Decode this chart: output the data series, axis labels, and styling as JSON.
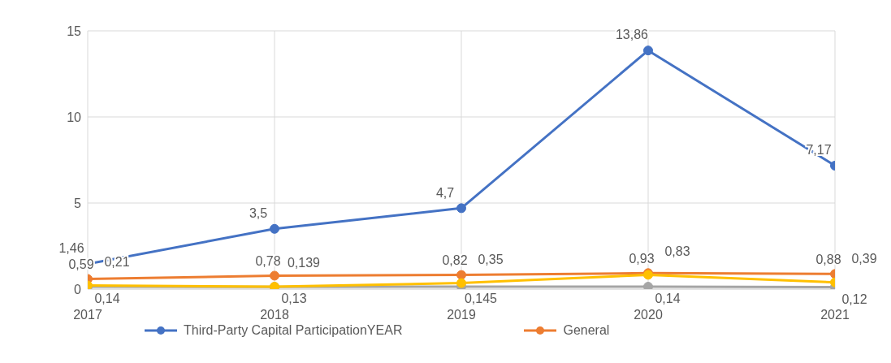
{
  "chart_data": {
    "type": "line",
    "categories": [
      "2017",
      "2018",
      "2019",
      "2020",
      "2021"
    ],
    "ylim": [
      0,
      15
    ],
    "yticks": [
      0,
      5,
      10,
      15
    ],
    "grid": true,
    "legend": "bottom",
    "marker": "circle",
    "line_style": "solid",
    "series": [
      {
        "name": "Third-Party Capital ParticipationYEAR",
        "color": "#4472c4",
        "values": [
          1.46,
          3.5,
          4.7,
          13.86,
          7.17
        ],
        "value_labels": [
          "1,46",
          "3,5",
          "4,7",
          "13,86",
          "7,17"
        ]
      },
      {
        "name": "General",
        "color": "#ed7d31",
        "values": [
          0.59,
          0.78,
          0.82,
          0.93,
          0.88
        ],
        "value_labels": [
          "0,59",
          "0,78",
          "0,82",
          "0,93",
          "0,88"
        ]
      },
      {
        "color": "#a5a5a5",
        "values": [
          0.14,
          0.13,
          0.145,
          0.14,
          0.12
        ],
        "value_labels": [
          "0,14",
          "0,13",
          "0,145",
          "0,14",
          "0,12"
        ]
      },
      {
        "color": "#ffc000",
        "values": [
          0.21,
          0.139,
          0.35,
          0.83,
          0.39
        ],
        "value_labels": [
          "0,21",
          "0,139",
          "0,35",
          "0,83",
          "0,39"
        ]
      }
    ]
  }
}
